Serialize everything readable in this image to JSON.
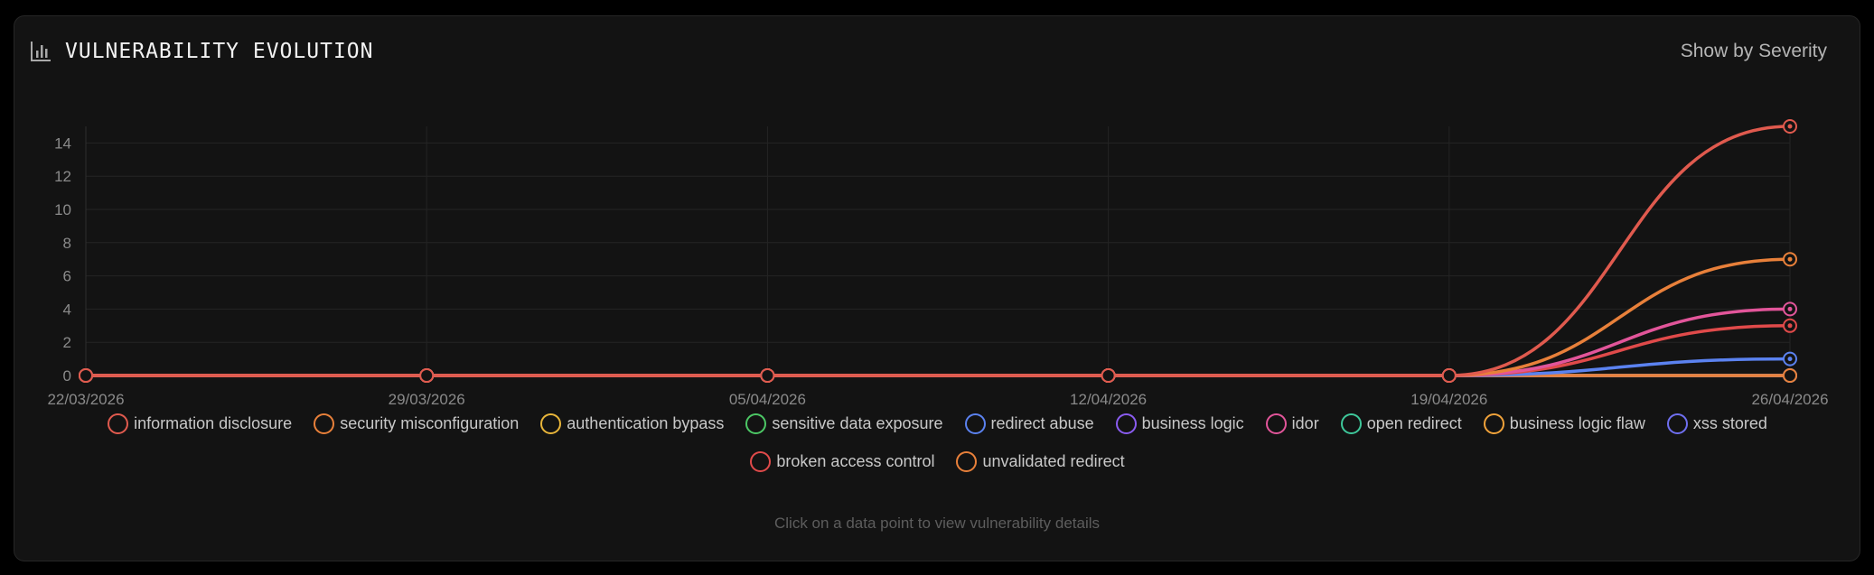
{
  "header": {
    "title": "VULNERABILITY EVOLUTION",
    "icon": "bar-chart-icon",
    "toggle_label": "Show by Severity"
  },
  "hint": "Click on a data point to view vulnerability details",
  "colors": {
    "background": "#000000",
    "card": "#131313",
    "grid": "#242424",
    "axis_text": "#8a8a8a"
  },
  "chart_data": {
    "type": "line",
    "x": [
      "22/03/2026",
      "29/03/2026",
      "05/04/2026",
      "12/04/2026",
      "19/04/2026",
      "26/04/2026"
    ],
    "ylim": [
      0,
      15
    ],
    "yticks": [
      0,
      2,
      4,
      6,
      8,
      10,
      12,
      14
    ],
    "grid": true,
    "legend_placement": "bottom",
    "series": [
      {
        "name": "information disclosure",
        "color": "#e05a4e",
        "values": [
          0,
          0,
          0,
          0,
          0,
          15
        ]
      },
      {
        "name": "security misconfiguration",
        "color": "#e8803a",
        "values": [
          0,
          0,
          0,
          0,
          0,
          7
        ]
      },
      {
        "name": "authentication bypass",
        "color": "#e8b53a",
        "values": [
          0,
          0,
          0,
          0,
          0,
          0
        ]
      },
      {
        "name": "sensitive data exposure",
        "color": "#4cc765",
        "values": [
          0,
          0,
          0,
          0,
          0,
          0
        ]
      },
      {
        "name": "redirect abuse",
        "color": "#5b82f0",
        "values": [
          0,
          0,
          0,
          0,
          0,
          1
        ]
      },
      {
        "name": "business logic",
        "color": "#8a5cf0",
        "values": [
          0,
          0,
          0,
          0,
          0,
          0
        ]
      },
      {
        "name": "idor",
        "color": "#e2559a",
        "values": [
          0,
          0,
          0,
          0,
          0,
          4
        ]
      },
      {
        "name": "open redirect",
        "color": "#3ec79a",
        "values": [
          0,
          0,
          0,
          0,
          0,
          0
        ]
      },
      {
        "name": "business logic flaw",
        "color": "#f0a23a",
        "values": [
          0,
          0,
          0,
          0,
          0,
          0
        ]
      },
      {
        "name": "xss stored",
        "color": "#6f6ff0",
        "values": [
          0,
          0,
          0,
          0,
          0,
          0
        ]
      },
      {
        "name": "broken access control",
        "color": "#e04a4a",
        "values": [
          0,
          0,
          0,
          0,
          0,
          3
        ]
      },
      {
        "name": "unvalidated redirect",
        "color": "#e8803a",
        "values": [
          0,
          0,
          0,
          0,
          0,
          0
        ]
      }
    ]
  }
}
